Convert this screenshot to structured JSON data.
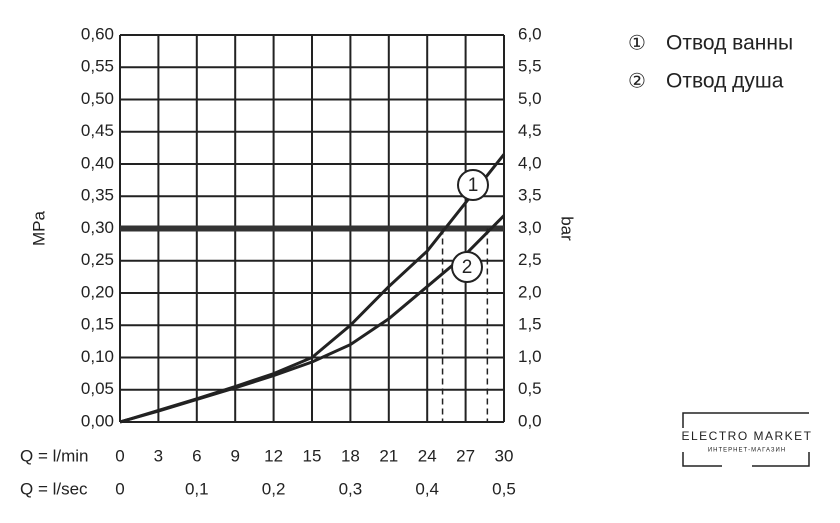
{
  "chart_data": {
    "type": "line",
    "x": [
      0,
      3,
      6,
      9,
      12,
      15,
      18,
      21,
      24,
      27,
      30
    ],
    "series": [
      {
        "name": "Отвод ванны",
        "marker": "①",
        "label": "1",
        "color": "#222222",
        "values": [
          0,
          0.018,
          0.036,
          0.055,
          0.075,
          0.1,
          0.15,
          0.21,
          0.265,
          0.34,
          0.415
        ]
      },
      {
        "name": "Отвод душа",
        "marker": "②",
        "label": "2",
        "color": "#222222",
        "values": [
          0,
          0.017,
          0.035,
          0.053,
          0.072,
          0.093,
          0.12,
          0.16,
          0.21,
          0.26,
          0.32
        ]
      }
    ],
    "xlabel": "Q = l/min",
    "x2label": "Q = l/sec",
    "ylabel": "MPa",
    "y2label": "bar",
    "xlim": [
      0,
      30
    ],
    "xticks": [
      0,
      3,
      6,
      9,
      12,
      15,
      18,
      21,
      24,
      27,
      30
    ],
    "x2lim": [
      0,
      0.5
    ],
    "x2ticks": [
      0,
      {
        "value": 0.1,
        "label": "0,1"
      },
      {
        "value": 0.2,
        "label": "0,2"
      },
      {
        "value": 0.3,
        "label": "0,3"
      },
      {
        "value": 0.4,
        "label": "0,4"
      },
      {
        "value": 0.5,
        "label": "0,5"
      }
    ],
    "ylim": [
      0,
      0.6
    ],
    "yticks": [
      {
        "value": 0,
        "label": "0,00"
      },
      {
        "value": 0.05,
        "label": "0,05"
      },
      {
        "value": 0.1,
        "label": "0,10"
      },
      {
        "value": 0.15,
        "label": "0,15"
      },
      {
        "value": 0.2,
        "label": "0,20"
      },
      {
        "value": 0.25,
        "label": "0,25"
      },
      {
        "value": 0.3,
        "label": "0,30"
      },
      {
        "value": 0.35,
        "label": "0,35"
      },
      {
        "value": 0.4,
        "label": "0,40"
      },
      {
        "value": 0.45,
        "label": "0,45"
      },
      {
        "value": 0.5,
        "label": "0,50"
      },
      {
        "value": 0.55,
        "label": "0,55"
      },
      {
        "value": 0.6,
        "label": "0,60"
      }
    ],
    "y2lim": [
      0,
      6
    ],
    "y2ticks": [
      {
        "value": 0,
        "label": "0,0"
      },
      {
        "value": 0.5,
        "label": "0,5"
      },
      {
        "value": 1,
        "label": "1,0"
      },
      {
        "value": 1.5,
        "label": "1,5"
      },
      {
        "value": 2,
        "label": "2,0"
      },
      {
        "value": 2.5,
        "label": "2,5"
      },
      {
        "value": 3,
        "label": "3,0"
      },
      {
        "value": 3.5,
        "label": "3,5"
      },
      {
        "value": 4,
        "label": "4,0"
      },
      {
        "value": 4.5,
        "label": "4,5"
      },
      {
        "value": 5,
        "label": "5,0"
      },
      {
        "value": 5.5,
        "label": "5,5"
      },
      {
        "value": 6,
        "label": "6,0"
      }
    ],
    "reference_y": 0.3,
    "dashed_x": [
      25.2,
      28.7
    ],
    "grid": true
  },
  "watermark": {
    "title": "ELECTRO MARKET",
    "subtitle": "ИНТЕРНЕТ-МАГАЗИН"
  }
}
